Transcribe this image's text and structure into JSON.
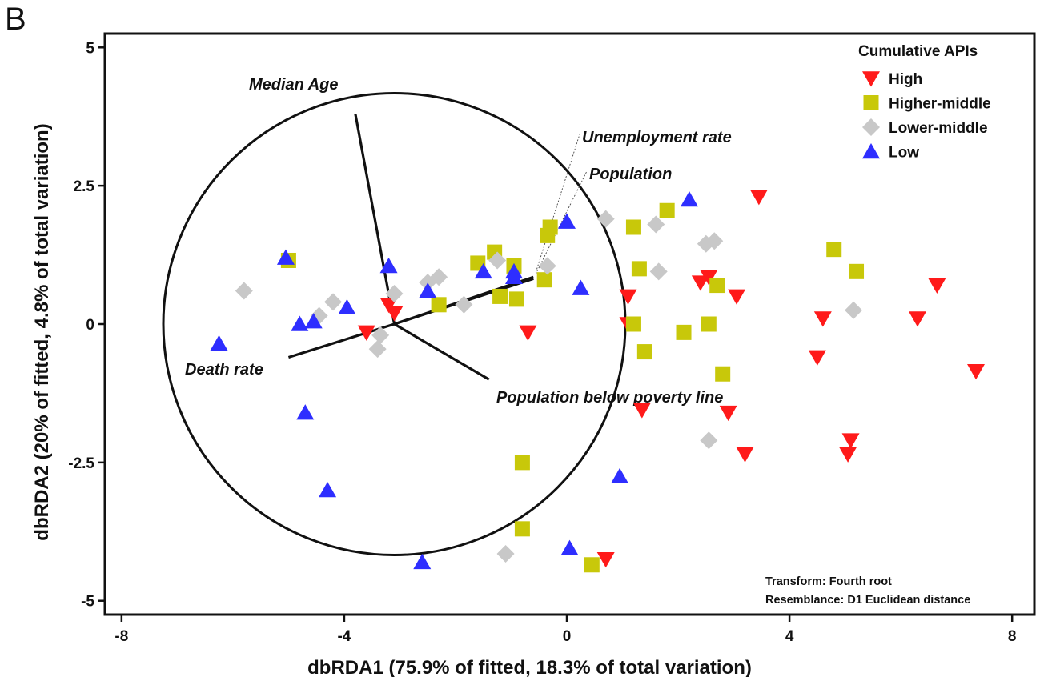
{
  "panel_label": "B",
  "chart_data": {
    "type": "scatter",
    "title": "",
    "xlabel": "dbRDA1 (75.9% of fitted, 18.3% of total variation)",
    "ylabel": "dbRDA2 (20% of fitted, 4.8% of total variation)",
    "xlim": [
      -8.3,
      8.4
    ],
    "ylim": [
      -5.25,
      5.25
    ],
    "x_ticks": [
      -8,
      -4,
      0,
      4,
      8
    ],
    "x_tick_labels": [
      "-8",
      "-4",
      "0",
      "4",
      "8"
    ],
    "y_ticks": [
      5,
      2.5,
      0,
      -2.5,
      -5
    ],
    "y_tick_labels": [
      "5",
      "2.5",
      "0",
      "-2.5",
      "-5"
    ],
    "grid": false,
    "legend": {
      "title": "Cumulative APIs",
      "position": "top-right"
    },
    "circle": {
      "center": [
        -3.1,
        0
      ],
      "radius": 4.15
    },
    "vectors": [
      {
        "label": "Median Age",
        "end": [
          -3.8,
          3.8
        ]
      },
      {
        "label": "Unemployment rate",
        "end": [
          -0.6,
          0.85
        ]
      },
      {
        "label": "Population",
        "end": [
          -0.6,
          0.82
        ]
      },
      {
        "label": "Death rate",
        "end": [
          -5.0,
          -0.6
        ]
      },
      {
        "label": "Population below poverty line",
        "end": [
          -1.4,
          -1.0
        ]
      }
    ],
    "series": [
      {
        "name": "High",
        "marker": "triangle-down",
        "color": "#ff1a1a",
        "points": [
          [
            -3.2,
            0.35
          ],
          [
            -3.1,
            0.2
          ],
          [
            -3.6,
            -0.15
          ],
          [
            -0.7,
            -0.15
          ],
          [
            1.1,
            0.5
          ],
          [
            1.1,
            0.0
          ],
          [
            1.35,
            -1.55
          ],
          [
            2.4,
            0.75
          ],
          [
            2.55,
            0.85
          ],
          [
            3.05,
            0.5
          ],
          [
            2.9,
            -1.6
          ],
          [
            3.2,
            -2.35
          ],
          [
            3.45,
            2.3
          ],
          [
            4.5,
            -0.6
          ],
          [
            4.6,
            0.1
          ],
          [
            5.1,
            -2.1
          ],
          [
            5.05,
            -2.35
          ],
          [
            6.3,
            0.1
          ],
          [
            6.65,
            0.7
          ],
          [
            7.35,
            -0.85
          ],
          [
            0.7,
            -4.25
          ]
        ]
      },
      {
        "name": "Higher-middle",
        "marker": "square",
        "color": "#c8c80a",
        "points": [
          [
            -5.0,
            1.15
          ],
          [
            -2.3,
            0.35
          ],
          [
            -1.6,
            1.1
          ],
          [
            -1.3,
            1.3
          ],
          [
            -1.2,
            0.5
          ],
          [
            -0.95,
            1.05
          ],
          [
            -0.9,
            0.45
          ],
          [
            -0.4,
            0.8
          ],
          [
            -0.35,
            1.6
          ],
          [
            -0.3,
            1.75
          ],
          [
            1.2,
            1.75
          ],
          [
            1.8,
            2.05
          ],
          [
            1.3,
            1.0
          ],
          [
            1.2,
            0.0
          ],
          [
            1.4,
            -0.5
          ],
          [
            2.1,
            -0.15
          ],
          [
            2.55,
            0.0
          ],
          [
            2.7,
            0.7
          ],
          [
            2.8,
            -0.9
          ],
          [
            4.8,
            1.35
          ],
          [
            5.2,
            0.95
          ],
          [
            -0.8,
            -2.5
          ],
          [
            -0.8,
            -3.7
          ],
          [
            0.45,
            -4.35
          ]
        ]
      },
      {
        "name": "Lower-middle",
        "marker": "diamond",
        "color": "#c8c8c8",
        "points": [
          [
            -5.8,
            0.6
          ],
          [
            -4.45,
            0.15
          ],
          [
            -4.2,
            0.4
          ],
          [
            -3.35,
            -0.2
          ],
          [
            -3.4,
            -0.45
          ],
          [
            -3.1,
            0.55
          ],
          [
            -2.5,
            0.75
          ],
          [
            -2.3,
            0.85
          ],
          [
            -1.85,
            0.35
          ],
          [
            -1.25,
            1.15
          ],
          [
            -0.35,
            1.05
          ],
          [
            0.7,
            1.9
          ],
          [
            1.6,
            1.8
          ],
          [
            1.65,
            0.95
          ],
          [
            2.5,
            1.45
          ],
          [
            2.65,
            1.5
          ],
          [
            5.15,
            0.25
          ],
          [
            2.55,
            -2.1
          ],
          [
            -1.1,
            -4.15
          ]
        ]
      },
      {
        "name": "Low",
        "marker": "triangle-up",
        "color": "#2e2eff",
        "points": [
          [
            -6.25,
            -0.35
          ],
          [
            -5.05,
            1.2
          ],
          [
            -4.8,
            0.0
          ],
          [
            -4.55,
            0.05
          ],
          [
            -3.95,
            0.3
          ],
          [
            -4.7,
            -1.6
          ],
          [
            -4.3,
            -3.0
          ],
          [
            -3.2,
            1.05
          ],
          [
            -2.5,
            0.6
          ],
          [
            -1.5,
            0.95
          ],
          [
            -0.95,
            0.95
          ],
          [
            -0.95,
            0.85
          ],
          [
            0.0,
            1.85
          ],
          [
            0.25,
            0.65
          ],
          [
            2.2,
            2.25
          ],
          [
            0.95,
            -2.75
          ],
          [
            0.05,
            -4.05
          ],
          [
            -2.6,
            -4.3
          ]
        ]
      }
    ],
    "annotations": [
      "Transform: Fourth root",
      "Resemblance: D1 Euclidean distance"
    ]
  }
}
